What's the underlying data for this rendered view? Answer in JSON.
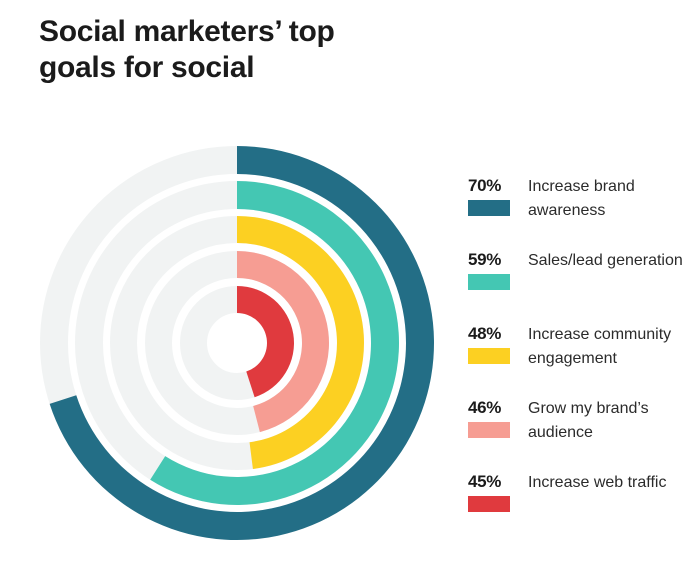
{
  "title": {
    "line1": "Social marketers’ top",
    "line2": "goals for social"
  },
  "colors": {
    "track": "#F1F3F3",
    "background": "#FFFFFF"
  },
  "legend": [
    {
      "percent": "70%",
      "label": "Increase brand awareness",
      "color": "#236E86"
    },
    {
      "percent": "59%",
      "label": "Sales/lead generation",
      "color": "#44C7B3"
    },
    {
      "percent": "48%",
      "label": "Increase community engagement",
      "color": "#FCD022"
    },
    {
      "percent": "46%",
      "label": "Grow my brand’s audience",
      "color": "#F69D93"
    },
    {
      "percent": "45%",
      "label": "Increase web traffic",
      "color": "#E03A3E"
    }
  ],
  "chart_data": {
    "type": "radial_bar",
    "title": "Social marketers’ top goals for social",
    "categories": [
      "Increase brand awareness",
      "Sales/lead generation",
      "Increase community engagement",
      "Grow my brand’s audience",
      "Increase web traffic"
    ],
    "values": [
      70,
      59,
      48,
      46,
      45
    ],
    "unit": "%",
    "max": 100,
    "colors": [
      "#236E86",
      "#44C7B3",
      "#FCD022",
      "#F69D93",
      "#E03A3E"
    ],
    "start_angle_deg": 0,
    "direction": "clockwise",
    "legend_position": "right",
    "grid": false
  }
}
